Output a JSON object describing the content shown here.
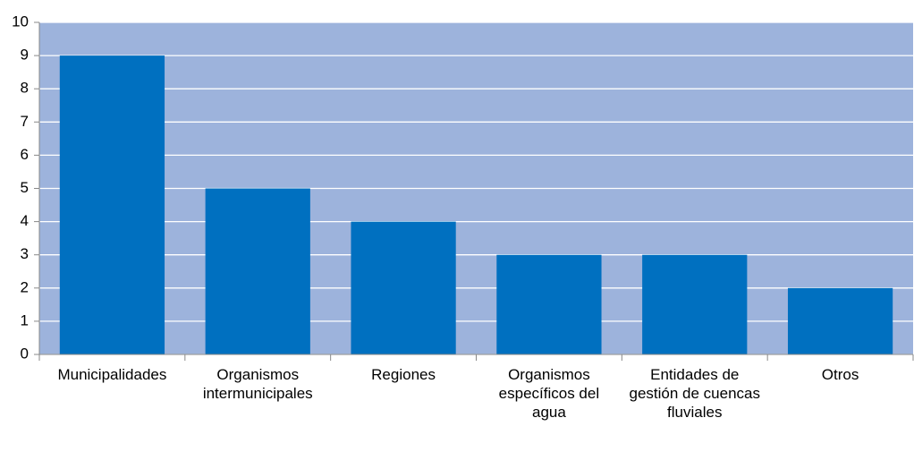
{
  "chart_data": {
    "type": "bar",
    "categories": [
      "Municipalidades",
      "Organismos intermunicipales",
      "Regiones",
      "Organismos específicos del agua",
      "Entidades de gestión de cuencas fluviales",
      "Otros"
    ],
    "values": [
      9,
      5,
      4,
      3,
      3,
      2
    ],
    "color": "#0070c0",
    "ylim": [
      0,
      10
    ],
    "yticks": [
      0,
      1,
      2,
      3,
      4,
      5,
      6,
      7,
      8,
      9,
      10
    ],
    "grid": true
  }
}
